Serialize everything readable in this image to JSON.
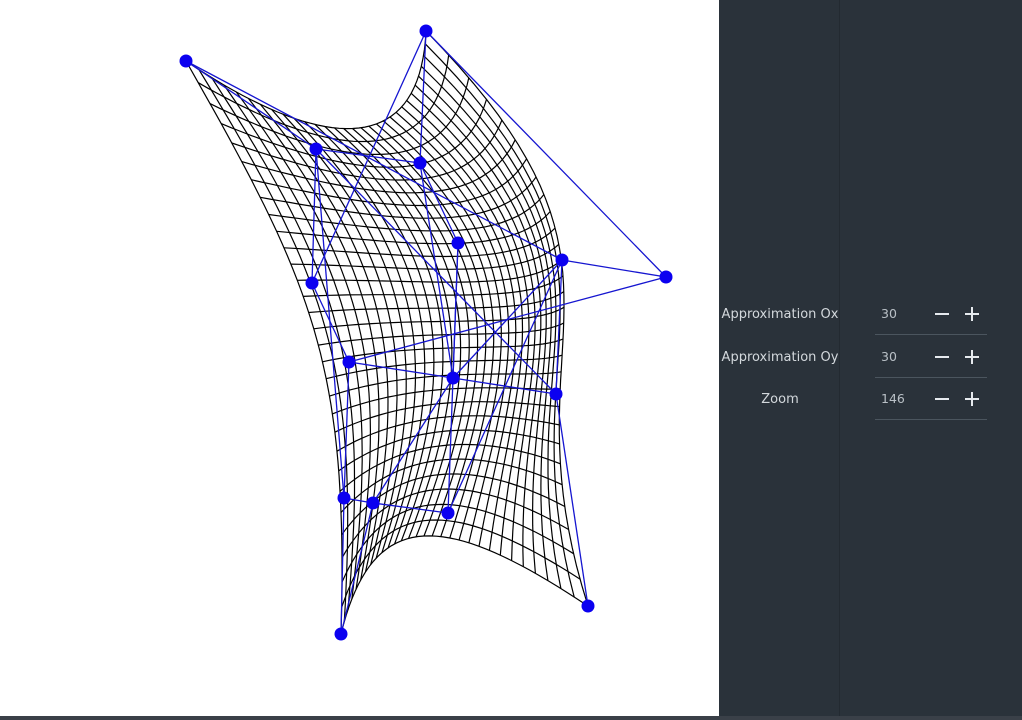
{
  "colors": {
    "panel_bg": "#2a323a",
    "mesh": "#000000",
    "control_net": "#1515d0",
    "control_point": "#0b00f0"
  },
  "controls": [
    {
      "label": "Approximation Ox",
      "value": "30"
    },
    {
      "label": "Approximation Oy",
      "value": "30"
    },
    {
      "label": "Zoom",
      "value": "146"
    }
  ],
  "icons": {
    "decrement": "minus-icon",
    "increment": "plus-icon"
  }
}
